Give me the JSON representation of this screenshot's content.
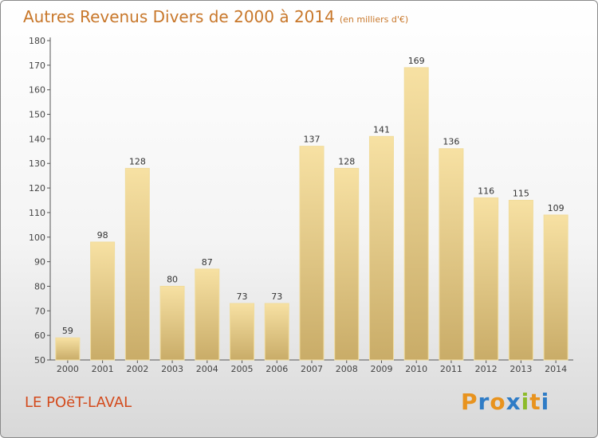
{
  "header": {
    "title": "Autres Revenus Divers de 2000 à 2014",
    "unit": "(en milliers d'€)"
  },
  "footer": {
    "commune": "LE POëT-LAVAL",
    "brand_letters": [
      "P",
      "r",
      "o",
      "x",
      "i",
      "t",
      "i"
    ],
    "brand_colors": [
      "#e8931e",
      "#2f7cc6",
      "#e8931e",
      "#2f7cc6",
      "#8dbb2a",
      "#e8931e",
      "#2f7cc6"
    ]
  },
  "colors": {
    "bar_light": "#f7e1a3",
    "bar_dark": "#c9ac68",
    "axis": "#555555",
    "grid": "#cccccc"
  },
  "chart_data": {
    "type": "bar",
    "title": "Autres Revenus Divers de 2000 à 2014",
    "subtitle": "(en milliers d'€)",
    "xlabel": "",
    "ylabel": "",
    "categories": [
      "2000",
      "2001",
      "2002",
      "2003",
      "2004",
      "2005",
      "2006",
      "2007",
      "2008",
      "2009",
      "2010",
      "2011",
      "2012",
      "2013",
      "2014"
    ],
    "values": [
      59,
      98,
      128,
      80,
      87,
      73,
      73,
      137,
      128,
      141,
      169,
      136,
      116,
      115,
      109
    ],
    "ylim": [
      50,
      180
    ],
    "yticks": [
      50,
      60,
      70,
      80,
      90,
      100,
      110,
      120,
      130,
      140,
      150,
      160,
      170,
      180
    ],
    "grid": false,
    "legend": "none"
  }
}
